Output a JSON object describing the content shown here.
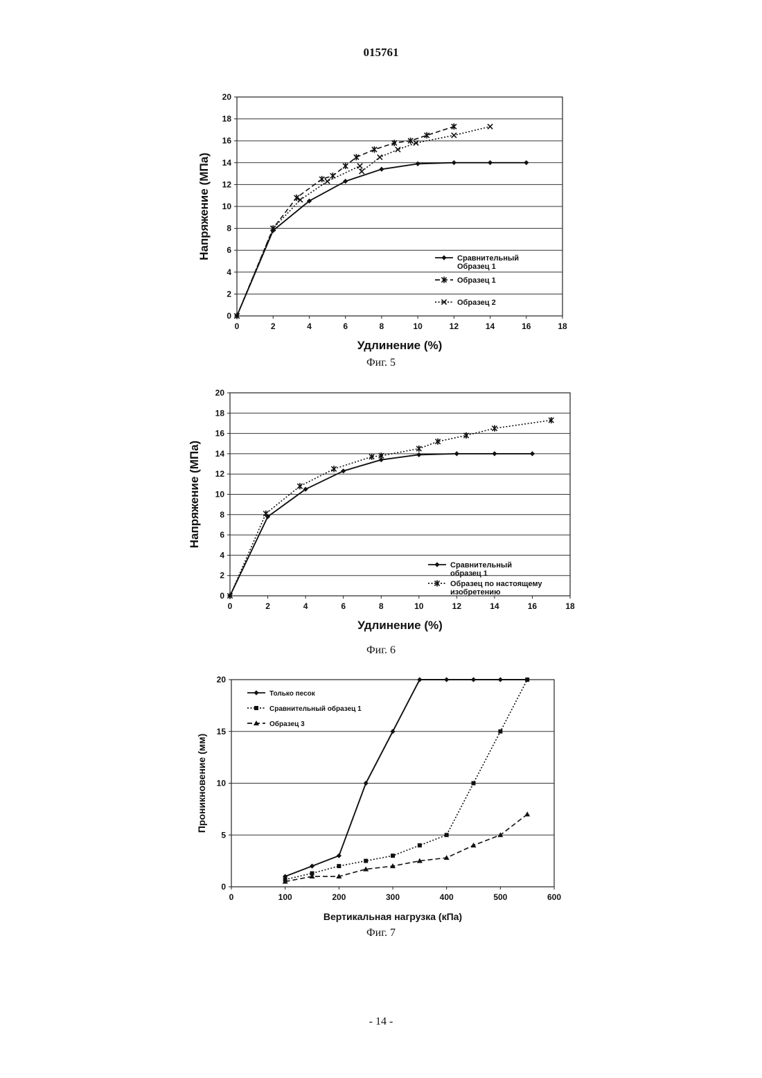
{
  "header": {
    "doc_number": "015761"
  },
  "footer": {
    "page_label": "- 14 -"
  },
  "chart_data": [
    {
      "id": "fig5",
      "type": "line",
      "caption": "Фиг. 5",
      "xlabel": "Удлинение (%)",
      "ylabel": "Напряжение (МПа)",
      "xlim": [
        0,
        18
      ],
      "ylim": [
        0,
        20
      ],
      "xticks": [
        0,
        2,
        4,
        6,
        8,
        10,
        12,
        14,
        16,
        18
      ],
      "yticks": [
        0,
        2,
        4,
        6,
        8,
        10,
        12,
        14,
        16,
        18,
        20
      ],
      "grid": "horizontal",
      "legend_position": "bottom-right",
      "series": [
        {
          "name": "Сравнительный Образец 1",
          "legend_lines": [
            "Сравнительный",
            "Образец 1"
          ],
          "style": "solid",
          "marker": "diamond",
          "x": [
            0,
            2,
            4,
            6,
            8,
            10,
            12,
            14,
            16
          ],
          "y": [
            0,
            7.8,
            10.5,
            12.3,
            13.4,
            13.9,
            14.0,
            14.0,
            14.0
          ]
        },
        {
          "name": "Образец 1",
          "legend_lines": [
            "Образец 1"
          ],
          "style": "dashed",
          "marker": "asterisk",
          "x": [
            0,
            2,
            3.3,
            4.7,
            5.3,
            6.0,
            6.6,
            7.6,
            8.7,
            9.6,
            10.5,
            12.0
          ],
          "y": [
            0,
            8.0,
            10.8,
            12.5,
            12.8,
            13.7,
            14.5,
            15.2,
            15.8,
            16.0,
            16.5,
            17.3
          ]
        },
        {
          "name": "Образец 2",
          "legend_lines": [
            "Образец 2"
          ],
          "style": "dotted",
          "marker": "x",
          "x": [
            0,
            2,
            3.5,
            5.0,
            6.8,
            6.9,
            7.9,
            8.9,
            9.9,
            12.0,
            14.0
          ],
          "y": [
            0,
            8.0,
            10.6,
            12.3,
            13.7,
            13.2,
            14.5,
            15.2,
            15.8,
            16.5,
            17.3
          ]
        }
      ]
    },
    {
      "id": "fig6",
      "type": "line",
      "caption": "Фиг. 6",
      "xlabel": "Удлинение (%)",
      "ylabel": "Напряжение (МПа)",
      "xlim": [
        0,
        18
      ],
      "ylim": [
        0,
        20
      ],
      "xticks": [
        0,
        2,
        4,
        6,
        8,
        10,
        12,
        14,
        16,
        18
      ],
      "yticks": [
        0,
        2,
        4,
        6,
        8,
        10,
        12,
        14,
        16,
        18,
        20
      ],
      "grid": "horizontal",
      "legend_position": "bottom-right",
      "series": [
        {
          "name": "Сравнительный образец 1",
          "legend_lines": [
            "Сравнительный",
            "образец 1"
          ],
          "style": "solid",
          "marker": "diamond",
          "x": [
            0,
            2,
            4,
            6,
            8,
            10,
            12,
            14,
            16
          ],
          "y": [
            0,
            7.8,
            10.5,
            12.3,
            13.4,
            13.9,
            14.0,
            14.0,
            14.0
          ]
        },
        {
          "name": "Образец по настоящему изобретению",
          "legend_lines": [
            "Образец по настоящему",
            "изобретению"
          ],
          "style": "dotted",
          "marker": "asterisk",
          "x": [
            0,
            1.9,
            3.7,
            5.5,
            7.5,
            8.0,
            10.0,
            11.0,
            12.5,
            14.0,
            17.0
          ],
          "y": [
            0,
            8.1,
            10.8,
            12.5,
            13.7,
            13.8,
            14.5,
            15.2,
            15.8,
            16.5,
            17.3
          ]
        }
      ]
    },
    {
      "id": "fig7",
      "type": "line",
      "caption": "Фиг. 7",
      "xlabel": "Вертикальная нагрузка (кПа)",
      "ylabel": "Проникновение (мм)",
      "xlim": [
        0,
        600
      ],
      "ylim": [
        0,
        20
      ],
      "xticks": [
        0,
        100,
        200,
        300,
        400,
        500,
        600
      ],
      "yticks": [
        0,
        5,
        10,
        15,
        20
      ],
      "grid": "horizontal",
      "legend_position": "top-left",
      "series": [
        {
          "name": "Только песок",
          "legend_lines": [
            "Только песок"
          ],
          "style": "solid",
          "marker": "diamond",
          "x": [
            100,
            150,
            200,
            250,
            300,
            350,
            400,
            450,
            500,
            550
          ],
          "y": [
            1,
            2,
            3,
            10,
            15,
            20,
            20,
            20,
            20,
            20
          ]
        },
        {
          "name": "Сравнительный образец 1",
          "legend_lines": [
            "Сравнительный образец 1"
          ],
          "style": "dotted",
          "marker": "square",
          "x": [
            100,
            150,
            200,
            250,
            300,
            350,
            400,
            450,
            500,
            550
          ],
          "y": [
            0.7,
            1.3,
            2,
            2.5,
            3,
            4,
            5,
            10,
            15,
            20
          ]
        },
        {
          "name": "Образец 3",
          "legend_lines": [
            "Образец 3"
          ],
          "style": "dashed",
          "marker": "triangle",
          "x": [
            100,
            150,
            200,
            250,
            300,
            350,
            400,
            450,
            500,
            550
          ],
          "y": [
            0.5,
            1,
            1,
            1.7,
            2,
            2.5,
            2.8,
            4,
            5,
            7
          ]
        }
      ]
    }
  ]
}
